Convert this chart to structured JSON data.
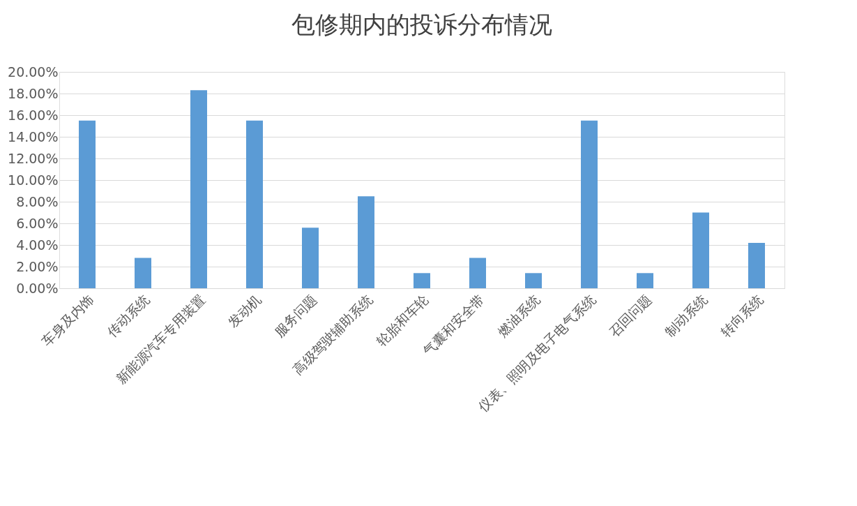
{
  "chart_data": {
    "type": "bar",
    "title": "包修期内的投诉分布情况",
    "categories": [
      "车身及内饰",
      "传动系统",
      "新能源汽车专用装置",
      "发动机",
      "服务问题",
      "高级驾驶辅助系统",
      "轮胎和车轮",
      "气囊和安全带",
      "燃油系统",
      "仪表、照明及电子电气系统",
      "召回问题",
      "制动系统",
      "转向系统"
    ],
    "values": [
      15.5,
      2.8,
      18.3,
      15.5,
      5.6,
      8.5,
      1.4,
      2.8,
      1.4,
      15.5,
      1.4,
      7.0,
      4.2
    ],
    "color": "#5b9bd5",
    "ylim": [
      0,
      20
    ],
    "yticks": [
      {
        "value": 0,
        "label": "0.00%"
      },
      {
        "value": 2,
        "label": "2.00%"
      },
      {
        "value": 4,
        "label": "4.00%"
      },
      {
        "value": 6,
        "label": "6.00%"
      },
      {
        "value": 8,
        "label": "8.00%"
      },
      {
        "value": 10,
        "label": "10.00%"
      },
      {
        "value": 12,
        "label": "12.00%"
      },
      {
        "value": 14,
        "label": "14.00%"
      },
      {
        "value": 16,
        "label": "16.00%"
      },
      {
        "value": 18,
        "label": "18.00%"
      },
      {
        "value": 20,
        "label": "20.00%"
      }
    ],
    "grid": "y"
  }
}
